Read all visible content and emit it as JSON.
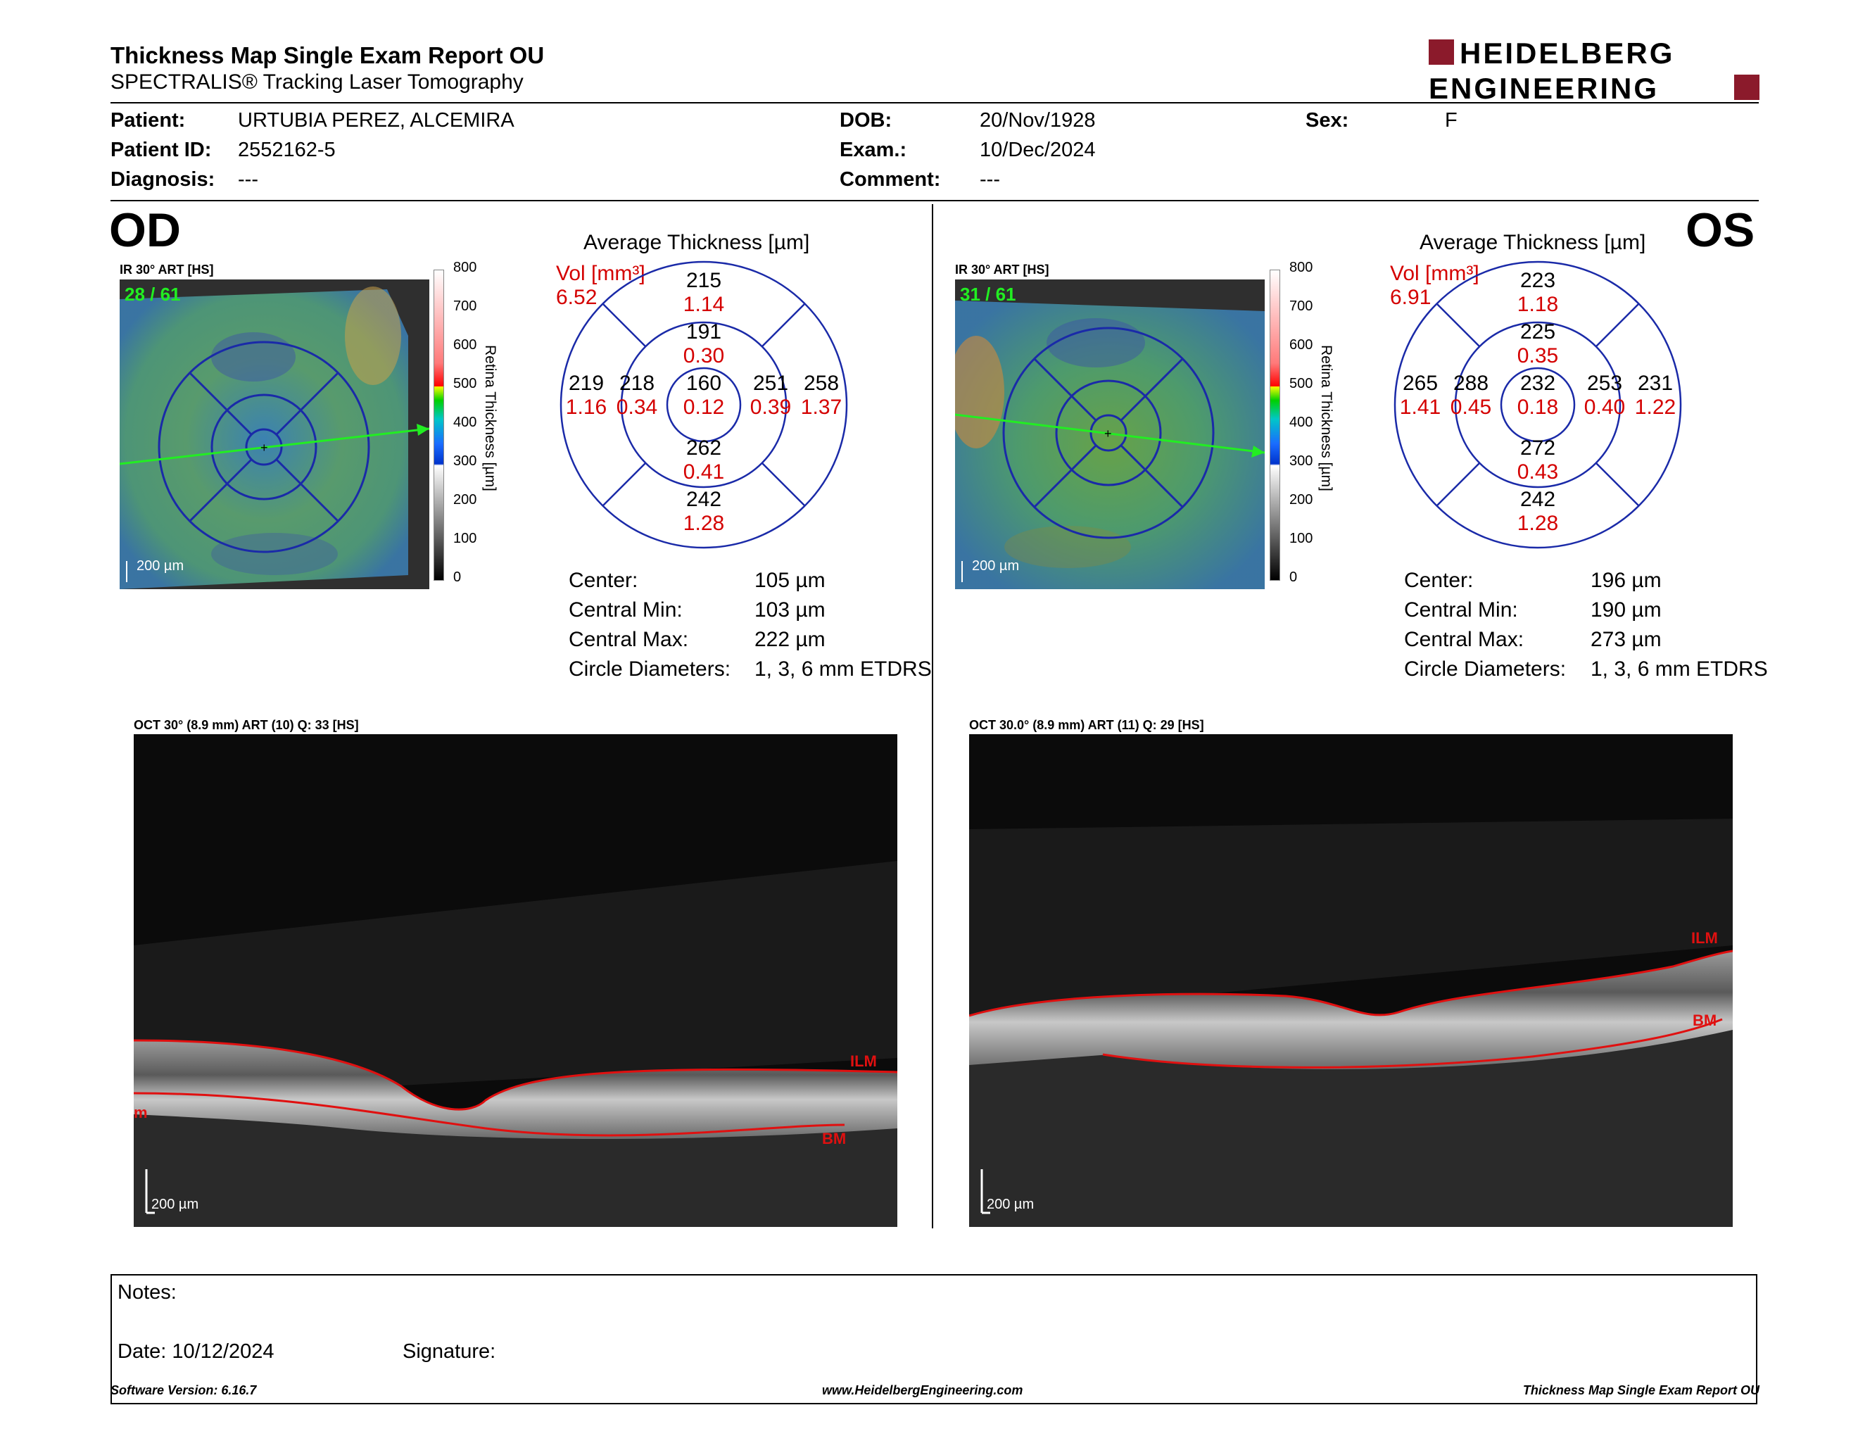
{
  "header": {
    "title": "Thickness Map Single Exam Report OU",
    "subtitle": "SPECTRALIS® Tracking Laser Tomography",
    "logo_top": "HEIDELBERG",
    "logo_bottom": "ENGINEERING",
    "brand_color": "#8b1a2b"
  },
  "patient": {
    "patient_label": "Patient:",
    "patient_name": "URTUBIA PEREZ, ALCEMIRA",
    "id_label": "Patient ID:",
    "id_value": "2552162-5",
    "diag_label": "Diagnosis:",
    "diag_value": "---",
    "dob_label": "DOB:",
    "dob_value": "20/Nov/1928",
    "exam_label": "Exam.:",
    "exam_value": "10/Dec/2024",
    "comment_label": "Comment:",
    "comment_value": "---",
    "sex_label": "Sex:",
    "sex_value": "F"
  },
  "od": {
    "eye": "OD",
    "ir_label": "IR 30° ART [HS]",
    "frame_count": "28 / 61",
    "scale": "200 µm",
    "colorbar_ticks": [
      "800",
      "700",
      "600",
      "500",
      "400",
      "300",
      "200",
      "100",
      "0"
    ],
    "colorbar_label": "Retina Thickness [µm]",
    "avg_title": "Average Thickness [µm]",
    "vol_label": "Vol [mm³]",
    "vol_total": "6.52",
    "sectors": {
      "center": {
        "n": "160",
        "v": "0.12"
      },
      "inner_sup": {
        "n": "191",
        "v": "0.30"
      },
      "inner_temp": {
        "n": "218",
        "v": "0.34"
      },
      "inner_nas": {
        "n": "251",
        "v": "0.39"
      },
      "inner_inf": {
        "n": "262",
        "v": "0.41"
      },
      "outer_sup": {
        "n": "215",
        "v": "1.14"
      },
      "outer_temp": {
        "n": "219",
        "v": "1.16"
      },
      "outer_nas": {
        "n": "258",
        "v": "1.37"
      },
      "outer_inf": {
        "n": "242",
        "v": "1.28"
      }
    },
    "stats": {
      "center_label": "Center:",
      "center_value": "105 µm",
      "min_label": "Central Min:",
      "min_value": "103 µm",
      "max_label": "Central Max:",
      "max_value": "222 µm",
      "diam_label": "Circle Diameters:",
      "diam_value": "1, 3, 6 mm ETDRS"
    },
    "oct_label": "OCT 30° (8.9 mm) ART (10) Q: 33 [HS]",
    "oct_scale": "200 µm",
    "ilm": "ILM",
    "bm": "BM",
    "bm_left": "m"
  },
  "os": {
    "eye": "OS",
    "ir_label": "IR 30° ART [HS]",
    "frame_count": "31 / 61",
    "scale": "200 µm",
    "colorbar_ticks": [
      "800",
      "700",
      "600",
      "500",
      "400",
      "300",
      "200",
      "100",
      "0"
    ],
    "colorbar_label": "Retina Thickness [µm]",
    "avg_title": "Average Thickness [µm]",
    "vol_label": "Vol [mm³]",
    "vol_total": "6.91",
    "sectors": {
      "center": {
        "n": "232",
        "v": "0.18"
      },
      "inner_sup": {
        "n": "225",
        "v": "0.35"
      },
      "inner_temp": {
        "n": "288",
        "v": "0.45"
      },
      "inner_nas": {
        "n": "253",
        "v": "0.40"
      },
      "inner_inf": {
        "n": "272",
        "v": "0.43"
      },
      "outer_sup": {
        "n": "223",
        "v": "1.18"
      },
      "outer_temp": {
        "n": "265",
        "v": "1.41"
      },
      "outer_nas": {
        "n": "231",
        "v": "1.22"
      },
      "outer_inf": {
        "n": "242",
        "v": "1.28"
      }
    },
    "stats": {
      "center_label": "Center:",
      "center_value": "196 µm",
      "min_label": "Central Min:",
      "min_value": "190 µm",
      "max_label": "Central Max:",
      "max_value": "273 µm",
      "diam_label": "Circle Diameters:",
      "diam_value": "1, 3, 6 mm ETDRS"
    },
    "oct_label": "OCT 30.0° (8.9 mm) ART (11) Q: 29 [HS]",
    "oct_scale": "200 µm",
    "ilm": "ILM",
    "bm": "BM"
  },
  "notes": {
    "notes_label": "Notes:",
    "date_label": "Date: 10/12/2024",
    "signature_label": "Signature:"
  },
  "footer": {
    "software": "Software Version: 6.16.7",
    "website": "www.HeidelbergEngineering.com",
    "report": "Thickness Map Single Exam Report OU"
  }
}
